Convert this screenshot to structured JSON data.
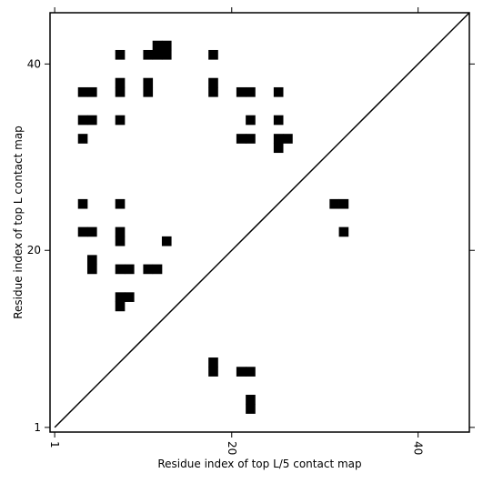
{
  "chart_data": {
    "type": "heatmap",
    "title": "",
    "xlabel": "Residue index of top L/5 contact map",
    "ylabel": "Residue index of top L contact map",
    "xlim": [
      0.5,
      45.5
    ],
    "ylim": [
      0.5,
      45.5
    ],
    "xticks": [
      1,
      20,
      40
    ],
    "yticks": [
      1,
      20,
      40
    ],
    "xtick_labels": [
      "1",
      "20",
      "40"
    ],
    "ytick_labels": [
      "1",
      "20",
      "40"
    ],
    "x_tick_labels_rotated": true,
    "diagonal": true,
    "cell_color": "#000000",
    "background_color": "#ffffff",
    "grid": false,
    "legend": false,
    "cells_upper_left": [
      [
        8,
        41
      ],
      [
        11,
        41
      ],
      [
        12,
        41
      ],
      [
        13,
        41
      ],
      [
        12,
        42
      ],
      [
        13,
        42
      ],
      [
        18,
        41
      ],
      [
        4,
        37
      ],
      [
        5,
        37
      ],
      [
        8,
        37
      ],
      [
        8,
        38
      ],
      [
        11,
        37
      ],
      [
        11,
        38
      ],
      [
        18,
        37
      ],
      [
        18,
        38
      ],
      [
        21,
        37
      ],
      [
        22,
        37
      ],
      [
        25,
        37
      ],
      [
        4,
        34
      ],
      [
        5,
        34
      ],
      [
        8,
        34
      ],
      [
        22,
        34
      ],
      [
        25,
        34
      ],
      [
        4,
        32
      ],
      [
        21,
        32
      ],
      [
        22,
        32
      ],
      [
        25,
        32
      ],
      [
        26,
        32
      ],
      [
        25,
        31
      ],
      [
        4,
        25
      ],
      [
        8,
        25
      ],
      [
        4,
        22
      ],
      [
        5,
        22
      ],
      [
        8,
        22
      ],
      [
        8,
        21
      ],
      [
        13,
        21
      ],
      [
        5,
        19
      ],
      [
        5,
        18
      ],
      [
        8,
        18
      ],
      [
        9,
        18
      ],
      [
        11,
        18
      ],
      [
        12,
        18
      ],
      [
        8,
        15
      ],
      [
        9,
        15
      ],
      [
        8,
        14
      ]
    ],
    "cells_lower_right": [
      [
        31,
        25
      ],
      [
        32,
        25
      ],
      [
        32,
        22
      ],
      [
        18,
        8
      ],
      [
        18,
        7
      ],
      [
        21,
        7
      ],
      [
        22,
        7
      ],
      [
        22,
        4
      ],
      [
        22,
        3
      ]
    ]
  }
}
